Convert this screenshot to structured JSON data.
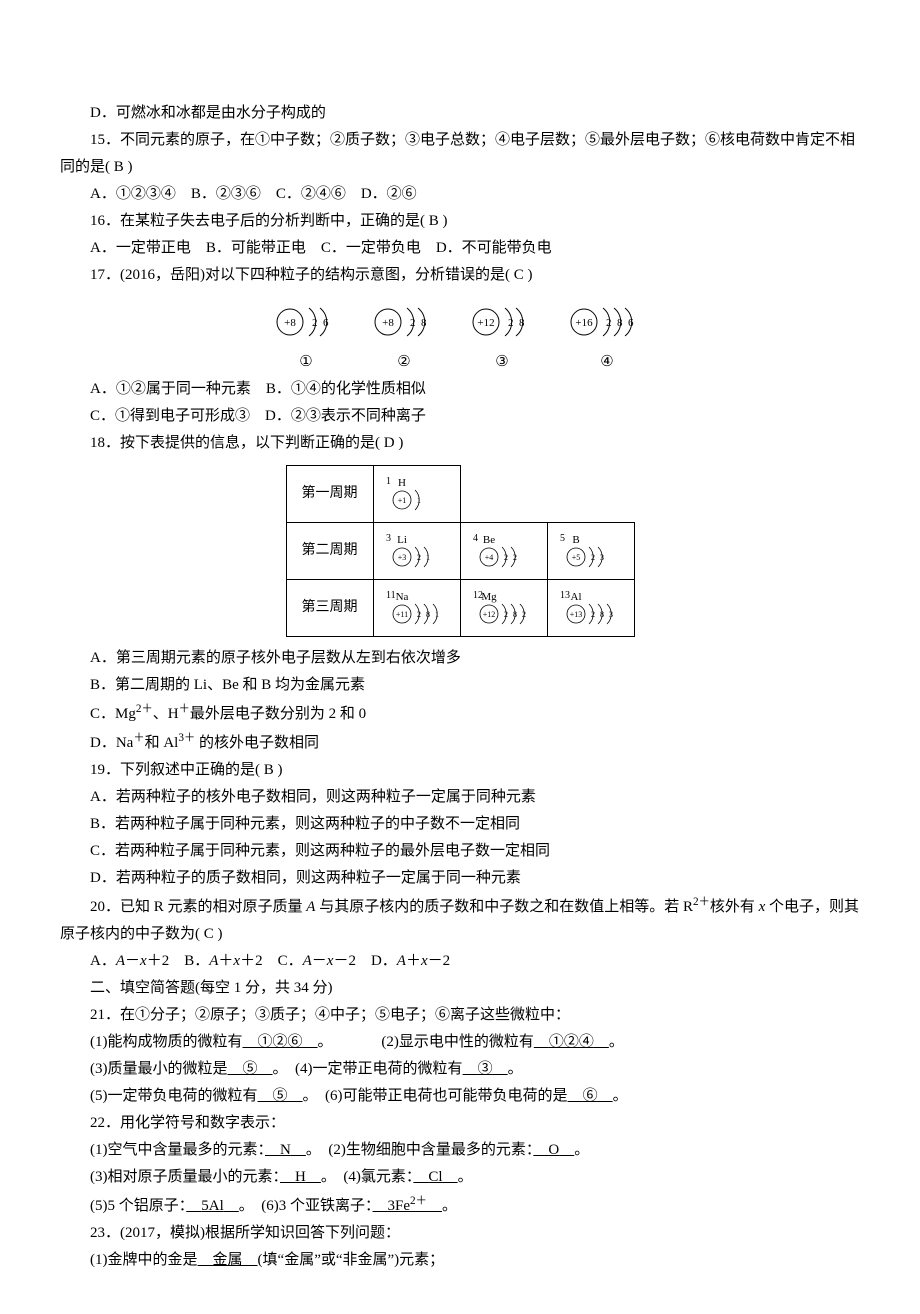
{
  "q14": {
    "optD": "D．可燃冰和冰都是由水分子构成的"
  },
  "q15": {
    "stem": "15．不同元素的原子，在①中子数；②质子数；③电子总数；④电子层数；⑤最外层电子数；⑥核电荷数中肯定不相同的是( B )",
    "opts": "A．①②③④　B．②③⑥　C．②④⑥　D．②⑥"
  },
  "q16": {
    "stem": "16．在某粒子失去电子后的分析判断中，正确的是( B )",
    "opts": "A．一定带正电　B．可能带正电　C．一定带负电　D．不可能带负电"
  },
  "q17": {
    "stem": "17．(2016，岳阳)对以下四种粒子的结构示意图，分析错误的是( C )",
    "diagrams": [
      {
        "charge": "+8",
        "shells": [
          "2",
          "6"
        ],
        "label": "①"
      },
      {
        "charge": "+8",
        "shells": [
          "2",
          "8"
        ],
        "label": "②"
      },
      {
        "charge": "+12",
        "shells": [
          "2",
          "8"
        ],
        "label": "③"
      },
      {
        "charge": "+16",
        "shells": [
          "2",
          "8",
          "6"
        ],
        "label": "④"
      }
    ],
    "optAB": "A．①②属于同一种元素　B．①④的化学性质相似",
    "optCD": "C．①得到电子可形成③　D．②③表示不同种离子"
  },
  "q18": {
    "stem": "18．按下表提供的信息，以下判断正确的是( D )",
    "table": {
      "rows": [
        {
          "label": "第一周期",
          "cells": [
            "1 H\n+1 1",
            "",
            ""
          ]
        },
        {
          "label": "第二周期",
          "cells": [
            "3 Li\n+3 2 1",
            "4 Be\n+4 2 2",
            "5 B\n+5 2 3"
          ]
        },
        {
          "label": "第三周期",
          "cells": [
            "11 Na\n+11 2 8 1",
            "12 Mg\n+12 2 8 2",
            "13 Al\n+13 2 8 3"
          ]
        }
      ]
    },
    "optA": "A．第三周期元素的原子核外电子层数从左到右依次增多",
    "optB": "B．第二周期的 Li、Be 和 B 均为金属元素",
    "optC_pre": "C．Mg",
    "optC_sup1": "2＋",
    "optC_mid": "、H",
    "optC_sup2": "＋",
    "optC_post": "最外层电子数分别为 2 和 0",
    "optD_pre": "D．Na",
    "optD_sup1": "＋",
    "optD_mid": "和 Al",
    "optD_sup2": "3＋",
    "optD_post": " 的核外电子数相同"
  },
  "q19": {
    "stem": "19．下列叙述中正确的是( B )",
    "optA": "A．若两种粒子的核外电子数相同，则这两种粒子一定属于同种元素",
    "optB": "B．若两种粒子属于同种元素，则这两种粒子的中子数不一定相同",
    "optC": "C．若两种粒子属于同种元素，则这两种粒子的最外层电子数一定相同",
    "optD": "D．若两种粒子的质子数相同，则这两种粒子一定属于同一种元素"
  },
  "q20": {
    "stem_pre": "20．已知 R 元素的相对原子质量 ",
    "stem_A": "A",
    "stem_mid1": " 与其原子核内的质子数和中子数之和在数值上相等。若 R",
    "stem_sup": "2＋",
    "stem_mid2": "核外有 ",
    "stem_x": "x",
    "stem_post": " 个电子，则其原子核内的中子数为( C )",
    "opt_pre": "A．",
    "opt_A1": "A",
    "opt_A2": "x",
    "opt_At": "－",
    "opt_Ap": "＋2　B．",
    "opt_B1": "A",
    "opt_B2": "x",
    "opt_Bt": "＋",
    "opt_Bp": "＋2　C．",
    "opt_C1": "A",
    "opt_C2": "x",
    "opt_Ct": "－",
    "opt_Cp": "－2　D．",
    "opt_D1": "A",
    "opt_D2": "x",
    "opt_Dt": "＋",
    "opt_Dp": "－2"
  },
  "section2": "二、填空简答题(每空 1 分，共 34 分)",
  "q21": {
    "stem": "21．在①分子；②原子；③质子；④中子；⑤电子；⑥离子这些微粒中：",
    "line1a": "(1)能构成物质的微粒有",
    "ans1": "①②⑥",
    "line1b": "。",
    "line1c": "(2)显示电中性的微粒有",
    "ans2": "①②④",
    "line1d": "。",
    "line2a": "(3)质量最小的微粒是",
    "ans3": "⑤",
    "line2b": "。　(4)一定带正电荷的微粒有",
    "ans4": "③",
    "line2c": "。",
    "line3a": "(5)一定带负电荷的微粒有",
    "ans5": "⑤",
    "line3b": "。　(6)可能带正电荷也可能带负电荷的是",
    "ans6": "⑥",
    "line3c": "。"
  },
  "q22": {
    "stem": "22．用化学符号和数字表示：",
    "l1a": "(1)空气中含量最多的元素：",
    "a1": "N",
    "l1b": "。　(2)生物细胞中含量最多的元素：",
    "a2": "O",
    "l1c": "。",
    "l2a": "(3)相对原子质量最小的元素：",
    "a3": "H",
    "l2b": "。　(4)氯元素：",
    "a4": "Cl",
    "l2c": "。",
    "l3a": "(5)5 个铝原子：",
    "a5": "5Al",
    "l3b": "。　(6)3 个亚铁离子：",
    "a6": "3Fe",
    "a6sup": "2＋",
    "l3c": "。"
  },
  "q23": {
    "stem": "23．(2017，模拟)根据所学知识回答下列问题：",
    "l1a": "(1)金牌中的金是",
    "a1": "金属",
    "l1b": "(填“金属”或“非金属”)元素；"
  }
}
